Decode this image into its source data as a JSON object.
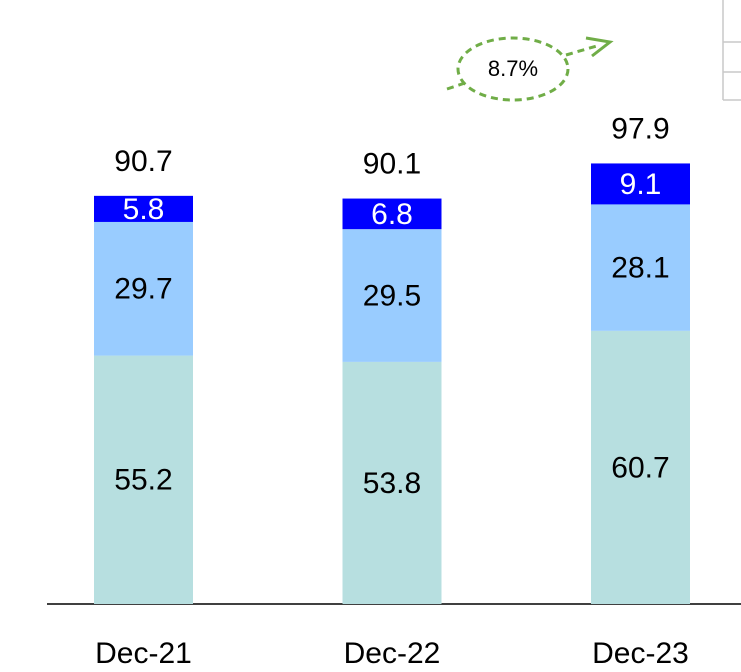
{
  "chart_data": {
    "type": "stacked-bar",
    "categories": [
      "Dec-21",
      "Dec-22",
      "Dec-23"
    ],
    "series": [
      {
        "color": "#b7dfe0",
        "label_color": "#000000",
        "values": [
          55.2,
          53.8,
          60.7
        ]
      },
      {
        "color": "#99ccff",
        "label_color": "#000000",
        "values": [
          29.7,
          29.5,
          28.1
        ]
      },
      {
        "color": "#0000ff",
        "label_color": "#ffffff",
        "values": [
          5.8,
          6.8,
          9.1
        ]
      }
    ],
    "totals": [
      90.7,
      90.1,
      97.9
    ],
    "annotation": "8.7%",
    "annotation_color": "#70ad47"
  }
}
